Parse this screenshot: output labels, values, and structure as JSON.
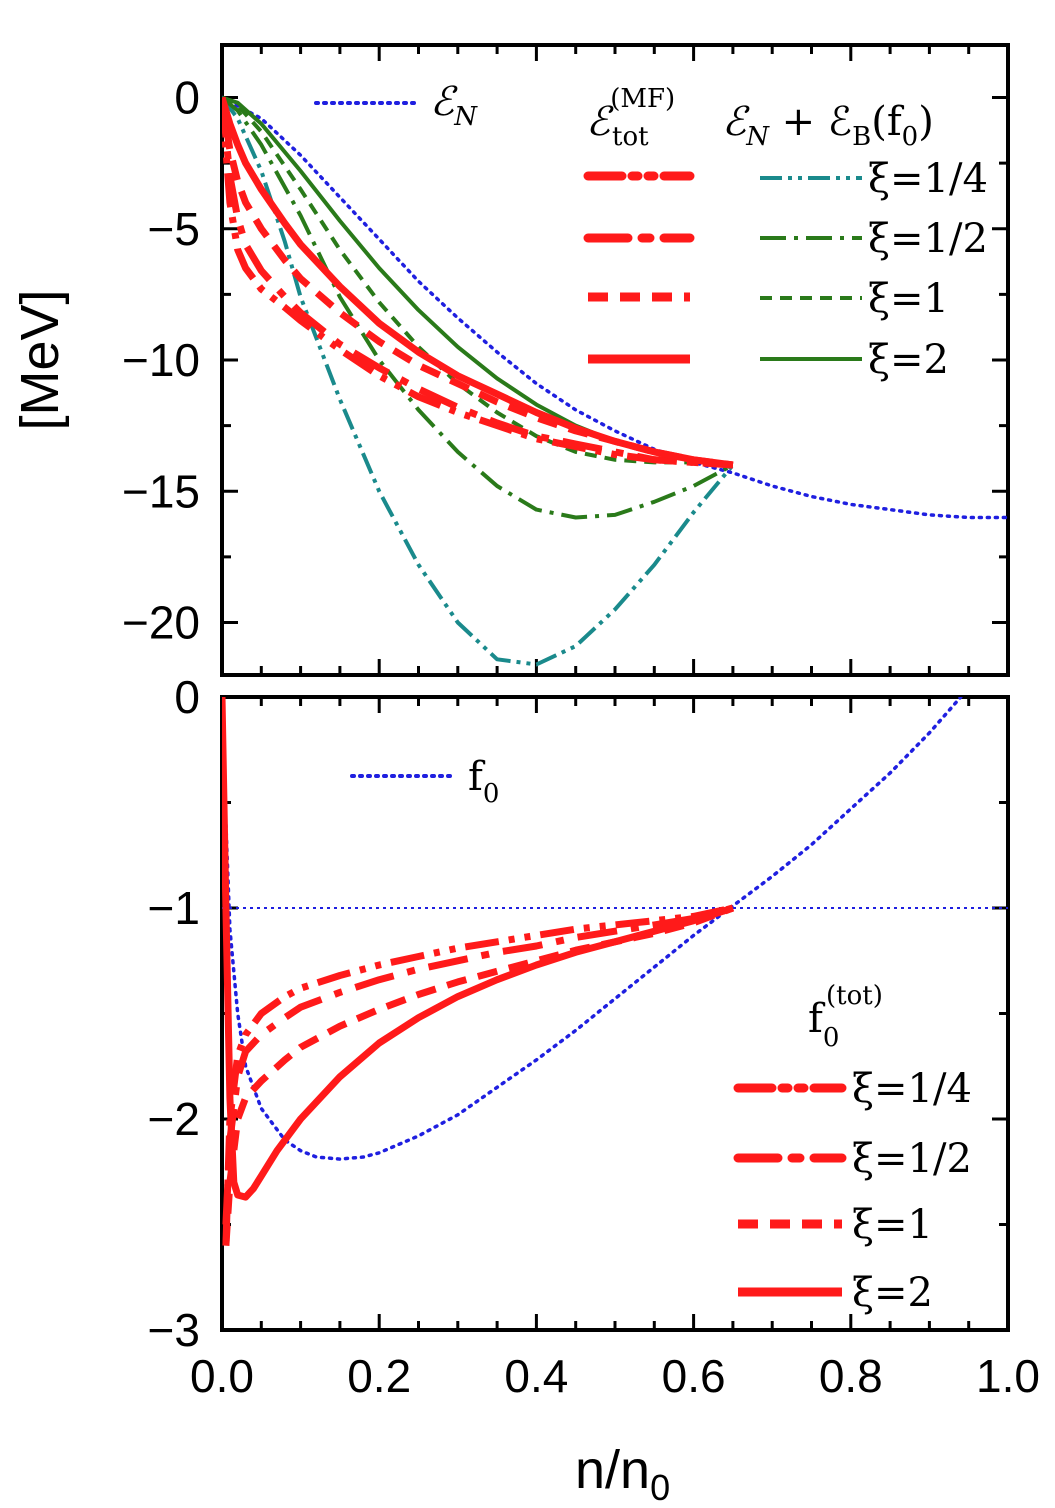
{
  "chart_data": [
    {
      "type": "line",
      "panel": "top",
      "ylabel": "[MeV]",
      "xlabel": "",
      "xlim": [
        0.0,
        1.0
      ],
      "ylim": [
        -22,
        2
      ],
      "yticks": [
        0,
        -5,
        -10,
        -15,
        -20
      ],
      "ytick_labels": [
        "0",
        "−5",
        "−10",
        "−15",
        "−20"
      ],
      "legend": {
        "en_label_main": "ℰ",
        "en_label_sub": "N",
        "col1_header_main": "ℰ",
        "col1_header_sub": "tot",
        "col1_header_sup": "(MF)",
        "col2_header_main": "ℰ",
        "col2_header_sub": "N",
        "col2_header_tail": " + ℰ",
        "col2_header_sub2": "B",
        "col2_header_end": "(f",
        "col2_header_end_sub": "0",
        "col2_header_close": ")",
        "xi_labels": [
          "ξ=1/4",
          "ξ=1/2",
          "ξ=1",
          "ξ=2"
        ]
      },
      "series": [
        {
          "name": "E_N",
          "color": "#1f1fe0",
          "style": "dotted",
          "x": [
            0,
            0.05,
            0.1,
            0.15,
            0.2,
            0.25,
            0.3,
            0.35,
            0.4,
            0.45,
            0.5,
            0.55,
            0.6,
            0.65,
            0.7,
            0.75,
            0.8,
            0.85,
            0.9,
            0.95,
            1.0
          ],
          "y": [
            0,
            -0.8,
            -2.2,
            -3.8,
            -5.4,
            -7.0,
            -8.4,
            -9.7,
            -10.9,
            -11.9,
            -12.7,
            -13.4,
            -13.9,
            -14.3,
            -14.8,
            -15.2,
            -15.5,
            -15.7,
            -15.9,
            -16.0,
            -16.0
          ]
        },
        {
          "name": "E_N+E_B xi=1/4",
          "color": "#1a8a8c",
          "style": "dashdotdot",
          "x": [
            0,
            0.02,
            0.05,
            0.08,
            0.1,
            0.15,
            0.2,
            0.25,
            0.3,
            0.35,
            0.4,
            0.45,
            0.5,
            0.55,
            0.6,
            0.65
          ],
          "y": [
            0,
            -0.8,
            -2.8,
            -5.5,
            -7.6,
            -11.5,
            -15.0,
            -17.8,
            -20.0,
            -21.4,
            -21.6,
            -20.9,
            -19.5,
            -17.8,
            -15.8,
            -14.0
          ]
        },
        {
          "name": "E_N+E_B xi=1/2",
          "color": "#2a7a1a",
          "style": "dashdot",
          "x": [
            0,
            0.02,
            0.05,
            0.1,
            0.15,
            0.2,
            0.25,
            0.3,
            0.35,
            0.4,
            0.45,
            0.5,
            0.55,
            0.6,
            0.65
          ],
          "y": [
            0,
            -0.5,
            -1.8,
            -4.5,
            -7.6,
            -10.0,
            -11.9,
            -13.5,
            -14.8,
            -15.7,
            -16.0,
            -15.9,
            -15.4,
            -14.8,
            -14.0
          ]
        },
        {
          "name": "E_N+E_B xi=1",
          "color": "#2a7a1a",
          "style": "dashed",
          "x": [
            0,
            0.02,
            0.05,
            0.1,
            0.15,
            0.2,
            0.25,
            0.3,
            0.35,
            0.4,
            0.45,
            0.5,
            0.55,
            0.6,
            0.65
          ],
          "y": [
            0,
            -0.3,
            -1.3,
            -3.5,
            -5.8,
            -7.8,
            -9.5,
            -10.9,
            -12.0,
            -12.9,
            -13.5,
            -13.8,
            -13.9,
            -13.9,
            -14.0
          ]
        },
        {
          "name": "E_N+E_B xi=2",
          "color": "#2a7a1a",
          "style": "solid",
          "x": [
            0,
            0.02,
            0.05,
            0.1,
            0.15,
            0.2,
            0.25,
            0.3,
            0.35,
            0.4,
            0.45,
            0.5,
            0.55,
            0.6,
            0.65
          ],
          "y": [
            0,
            -0.2,
            -1.0,
            -2.8,
            -4.7,
            -6.5,
            -8.1,
            -9.5,
            -10.7,
            -11.7,
            -12.5,
            -13.1,
            -13.5,
            -13.8,
            -14.0
          ]
        },
        {
          "name": "E_tot^MF xi=1/4",
          "color": "#ff1a1a",
          "style": "dashdotdot",
          "x": [
            0,
            0.005,
            0.01,
            0.02,
            0.03,
            0.05,
            0.08,
            0.1,
            0.15,
            0.2,
            0.25,
            0.3,
            0.35,
            0.4,
            0.45,
            0.5,
            0.55,
            0.6,
            0.65
          ],
          "y": [
            0,
            -2.0,
            -4.0,
            -5.8,
            -6.5,
            -7.3,
            -8.0,
            -8.5,
            -9.6,
            -10.6,
            -11.4,
            -12.0,
            -12.5,
            -13.0,
            -13.3,
            -13.6,
            -13.8,
            -13.9,
            -14.0
          ]
        },
        {
          "name": "E_tot^MF xi=1/2",
          "color": "#ff1a1a",
          "style": "dashdot",
          "x": [
            0,
            0.005,
            0.01,
            0.02,
            0.03,
            0.05,
            0.08,
            0.1,
            0.15,
            0.2,
            0.25,
            0.3,
            0.35,
            0.4,
            0.45,
            0.5,
            0.55,
            0.6,
            0.65
          ],
          "y": [
            0,
            -1.5,
            -3.0,
            -4.6,
            -5.6,
            -6.6,
            -7.6,
            -8.2,
            -9.4,
            -10.3,
            -11.1,
            -11.8,
            -12.4,
            -12.9,
            -13.2,
            -13.5,
            -13.8,
            -13.9,
            -14.0
          ]
        },
        {
          "name": "E_tot^MF xi=1",
          "color": "#ff1a1a",
          "style": "dashed",
          "x": [
            0,
            0.005,
            0.01,
            0.02,
            0.03,
            0.05,
            0.08,
            0.1,
            0.15,
            0.2,
            0.25,
            0.3,
            0.35,
            0.4,
            0.45,
            0.5,
            0.55,
            0.6,
            0.65
          ],
          "y": [
            0,
            -1.0,
            -2.0,
            -3.2,
            -4.0,
            -5.0,
            -6.2,
            -6.9,
            -8.2,
            -9.3,
            -10.2,
            -10.9,
            -11.6,
            -12.2,
            -12.7,
            -13.1,
            -13.5,
            -13.8,
            -14.0
          ]
        },
        {
          "name": "E_tot^MF xi=2",
          "color": "#ff1a1a",
          "style": "solid",
          "x": [
            0,
            0.005,
            0.01,
            0.02,
            0.03,
            0.05,
            0.08,
            0.1,
            0.15,
            0.2,
            0.25,
            0.3,
            0.35,
            0.4,
            0.45,
            0.5,
            0.55,
            0.6,
            0.65
          ],
          "y": [
            0,
            -0.5,
            -1.0,
            -1.8,
            -2.5,
            -3.5,
            -4.8,
            -5.6,
            -7.2,
            -8.6,
            -9.7,
            -10.6,
            -11.3,
            -12.0,
            -12.6,
            -13.1,
            -13.5,
            -13.8,
            -14.0
          ]
        }
      ]
    },
    {
      "type": "line",
      "panel": "bottom",
      "ylabel": "",
      "xlabel_main": "n/n",
      "xlabel_sub": "0",
      "xlim": [
        0.0,
        1.0
      ],
      "ylim": [
        -3,
        0
      ],
      "xticks": [
        0.0,
        0.2,
        0.4,
        0.6,
        0.8,
        1.0
      ],
      "xtick_labels": [
        "0.0",
        "0.2",
        "0.4",
        "0.6",
        "0.8",
        "1.0"
      ],
      "yticks": [
        0,
        -1,
        -2,
        -3
      ],
      "ytick_labels": [
        "0",
        "−1",
        "−2",
        "−3"
      ],
      "legend": {
        "f0_main": "f",
        "f0_sub": "0",
        "ftot_main": "f",
        "ftot_sub": "0",
        "ftot_sup": "(tot)",
        "xi_labels": [
          "ξ=1/4",
          "ξ=1/2",
          "ξ=1",
          "ξ=2"
        ]
      },
      "reference_line": {
        "y": -1,
        "color": "#1f1fe0",
        "style": "dotted"
      },
      "series": [
        {
          "name": "f0",
          "color": "#1f1fe0",
          "style": "dotted",
          "x": [
            0.0,
            0.005,
            0.01,
            0.02,
            0.03,
            0.05,
            0.08,
            0.1,
            0.12,
            0.15,
            0.18,
            0.2,
            0.25,
            0.3,
            0.35,
            0.4,
            0.45,
            0.5,
            0.55,
            0.6,
            0.65,
            0.7,
            0.75,
            0.8,
            0.85,
            0.9,
            0.94
          ],
          "y": [
            0.0,
            -0.6,
            -1.1,
            -1.5,
            -1.75,
            -1.95,
            -2.1,
            -2.15,
            -2.18,
            -2.19,
            -2.18,
            -2.16,
            -2.08,
            -1.98,
            -1.85,
            -1.72,
            -1.58,
            -1.43,
            -1.28,
            -1.13,
            -0.99,
            -0.85,
            -0.7,
            -0.53,
            -0.36,
            -0.17,
            0.0
          ]
        },
        {
          "name": "f0tot xi=1/4",
          "color": "#ff1a1a",
          "style": "dashdotdot",
          "x": [
            0.005,
            0.01,
            0.02,
            0.03,
            0.05,
            0.08,
            0.1,
            0.15,
            0.2,
            0.25,
            0.3,
            0.35,
            0.4,
            0.45,
            0.5,
            0.55,
            0.6,
            0.65
          ],
          "y": [
            -2.6,
            -2.0,
            -1.7,
            -1.6,
            -1.5,
            -1.42,
            -1.38,
            -1.32,
            -1.27,
            -1.23,
            -1.19,
            -1.16,
            -1.13,
            -1.1,
            -1.08,
            -1.06,
            -1.04,
            -1.0
          ]
        },
        {
          "name": "f0tot xi=1/2",
          "color": "#ff1a1a",
          "style": "dashdot",
          "x": [
            0.005,
            0.01,
            0.02,
            0.03,
            0.05,
            0.08,
            0.1,
            0.15,
            0.2,
            0.25,
            0.3,
            0.35,
            0.4,
            0.45,
            0.5,
            0.55,
            0.6,
            0.65
          ],
          "y": [
            -2.5,
            -2.1,
            -1.8,
            -1.68,
            -1.6,
            -1.52,
            -1.47,
            -1.4,
            -1.34,
            -1.29,
            -1.25,
            -1.21,
            -1.18,
            -1.14,
            -1.11,
            -1.08,
            -1.05,
            -1.0
          ]
        },
        {
          "name": "f0tot xi=1",
          "color": "#ff1a1a",
          "style": "dashed",
          "x": [
            0.005,
            0.01,
            0.02,
            0.03,
            0.05,
            0.08,
            0.1,
            0.15,
            0.2,
            0.25,
            0.3,
            0.35,
            0.4,
            0.45,
            0.5,
            0.55,
            0.6,
            0.65
          ],
          "y": [
            -2.6,
            -2.3,
            -2.0,
            -1.9,
            -1.82,
            -1.72,
            -1.66,
            -1.56,
            -1.48,
            -1.41,
            -1.35,
            -1.3,
            -1.25,
            -1.2,
            -1.16,
            -1.12,
            -1.07,
            -1.0
          ]
        },
        {
          "name": "f0tot xi=2",
          "color": "#ff1a1a",
          "style": "solid",
          "x": [
            0.0,
            0.005,
            0.01,
            0.015,
            0.02,
            0.03,
            0.04,
            0.05,
            0.07,
            0.1,
            0.15,
            0.2,
            0.25,
            0.3,
            0.35,
            0.4,
            0.45,
            0.5,
            0.55,
            0.6,
            0.65
          ],
          "y": [
            0.0,
            -1.0,
            -1.9,
            -2.3,
            -2.36,
            -2.37,
            -2.33,
            -2.27,
            -2.15,
            -2.0,
            -1.8,
            -1.64,
            -1.52,
            -1.42,
            -1.34,
            -1.27,
            -1.21,
            -1.16,
            -1.11,
            -1.06,
            -1.0
          ]
        }
      ]
    }
  ]
}
